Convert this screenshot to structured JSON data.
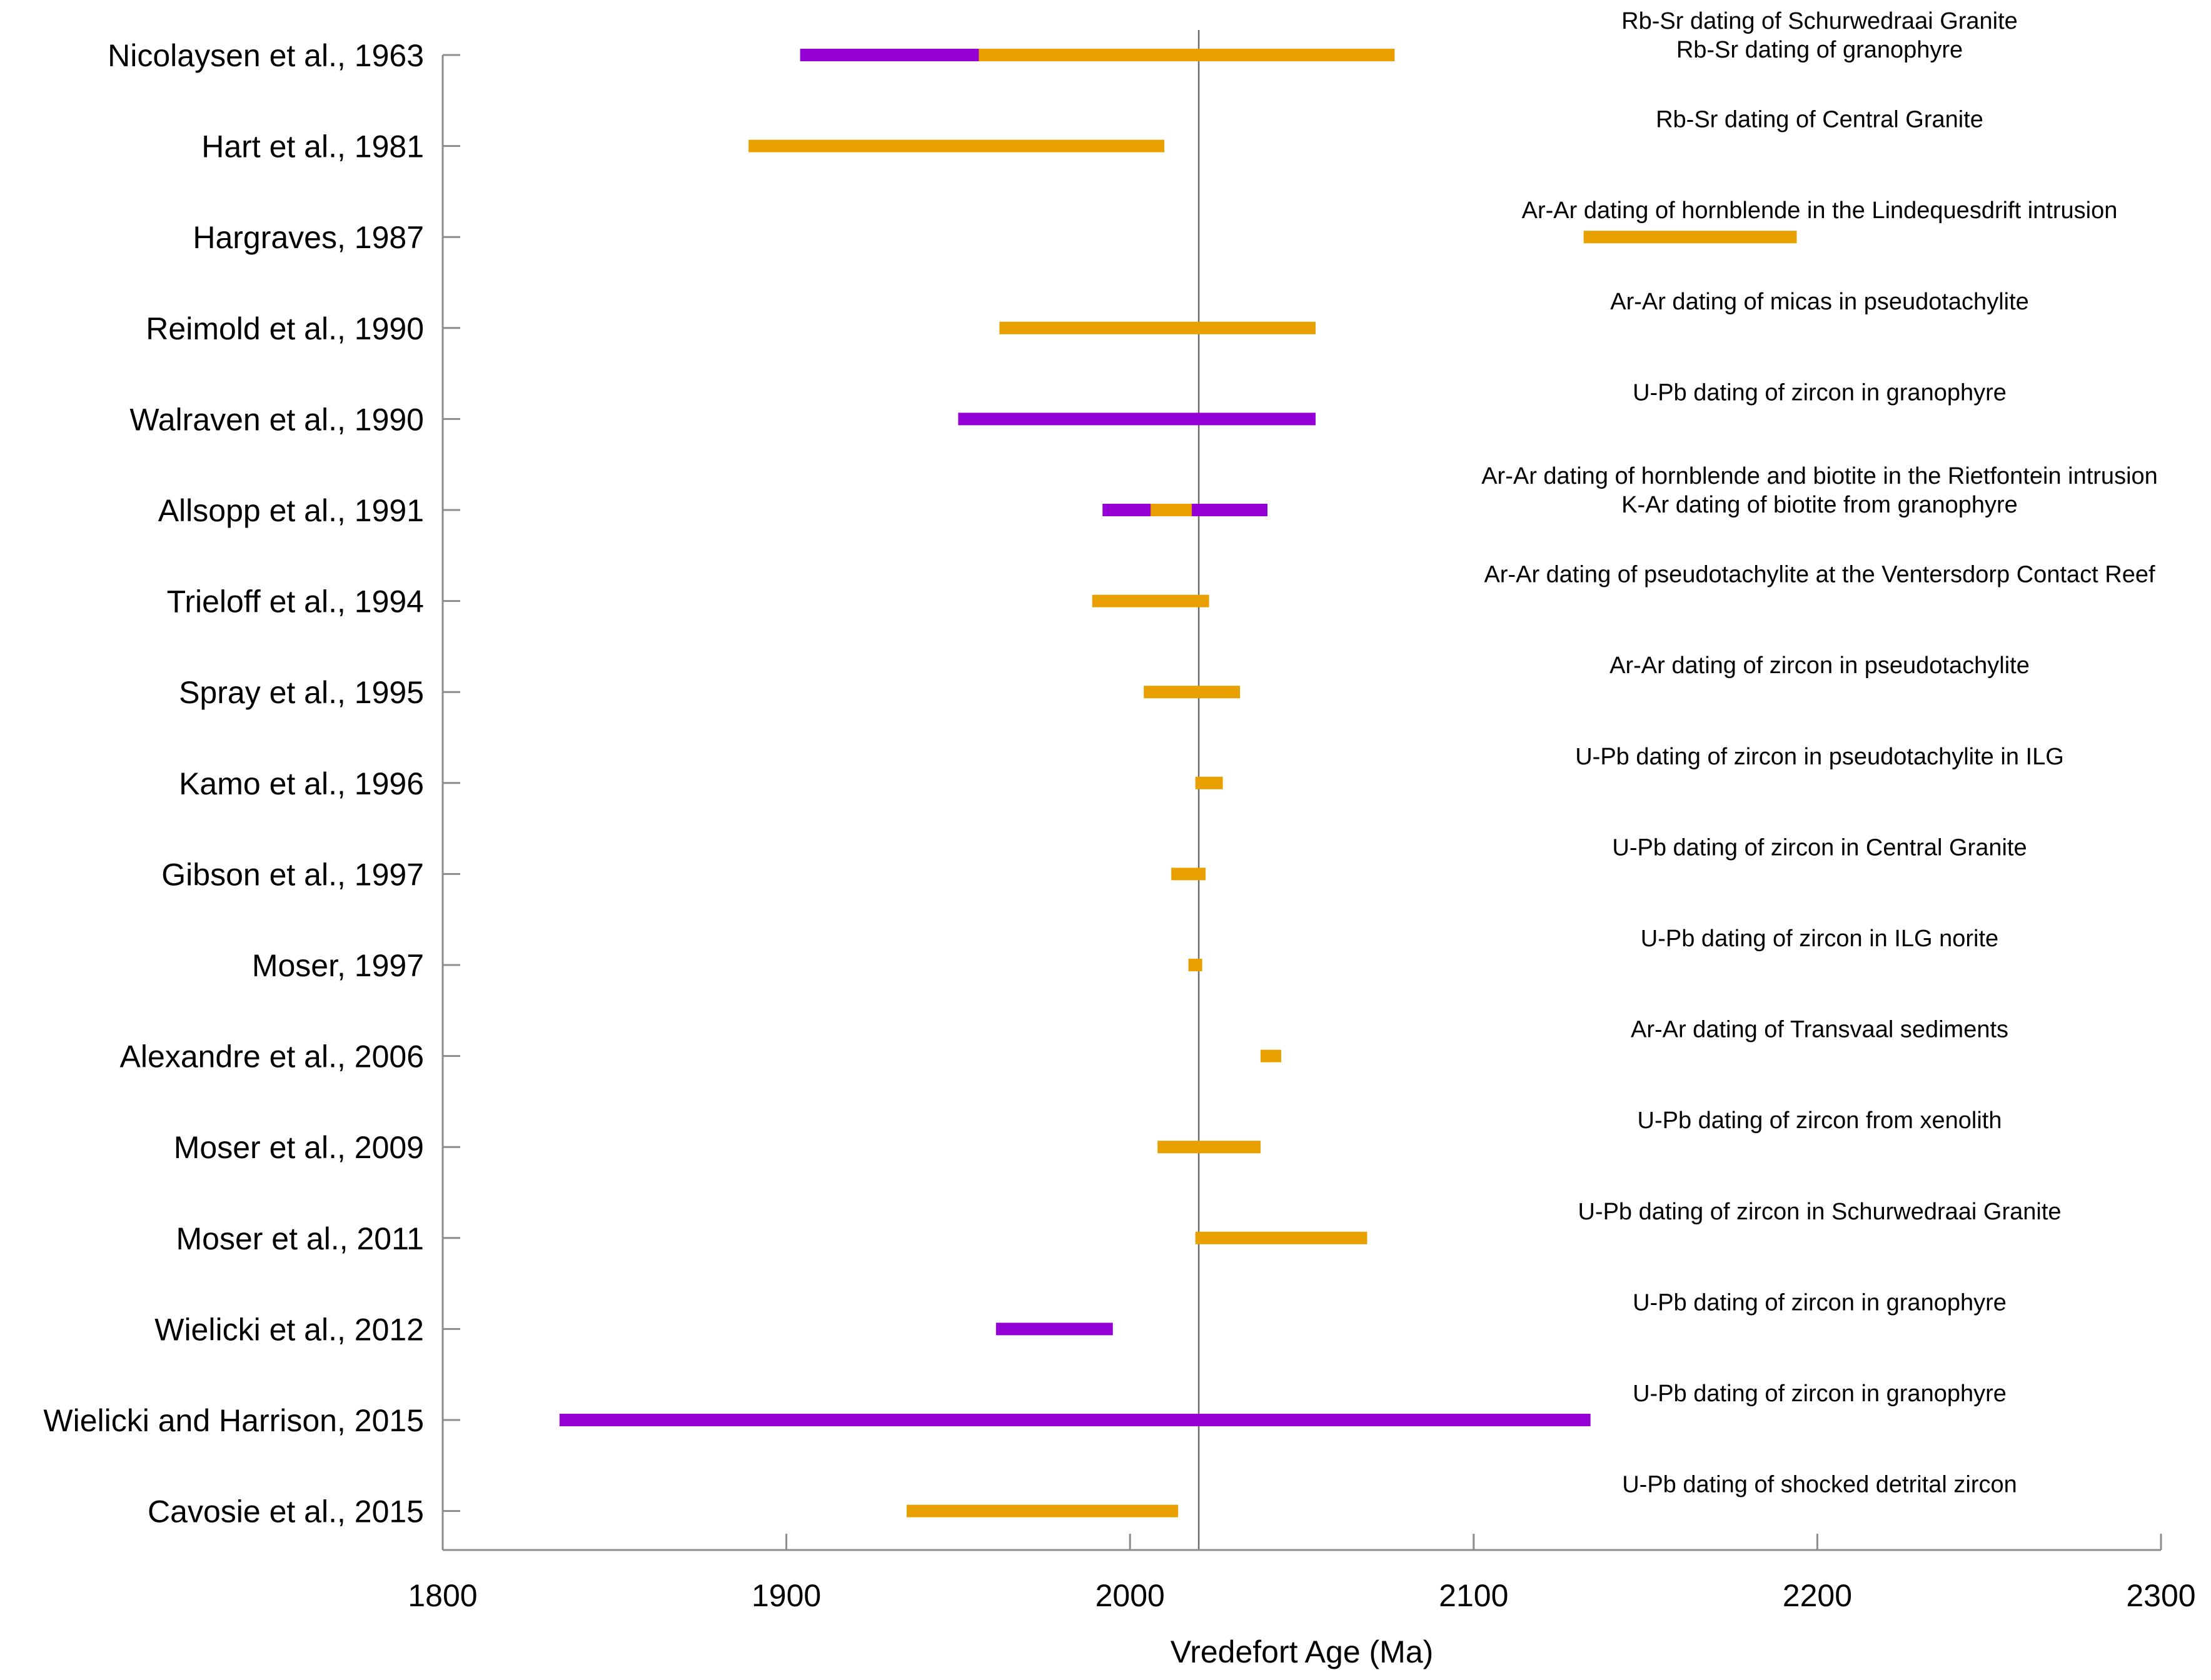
{
  "chart_data": {
    "type": "range-bar",
    "title": "",
    "xlabel": "Vredefort Age (Ma)",
    "ylabel": "",
    "xlim": [
      1800,
      2300
    ],
    "xticks": [
      1800,
      1900,
      2000,
      2100,
      2200,
      2300
    ],
    "reference_line_x": 2020,
    "grid": false,
    "legend": null,
    "colors": {
      "purple": "#9400d3",
      "orange": "#e8a000"
    },
    "studies": [
      {
        "label": "Nicolaysen et al., 1963",
        "notes": [
          "Rb-Sr dating of Schurwedraai Granite",
          "Rb-Sr dating of granophyre"
        ],
        "ranges": [
          {
            "start": 1955,
            "end": 2077,
            "color": "orange"
          },
          {
            "start": 1904,
            "end": 1956,
            "color": "purple"
          }
        ]
      },
      {
        "label": "Hart et al., 1981",
        "notes": [
          "Rb-Sr dating of Central Granite"
        ],
        "ranges": [
          {
            "start": 1889,
            "end": 2010,
            "color": "orange"
          }
        ]
      },
      {
        "label": "Hargraves, 1987",
        "notes": [
          "Ar-Ar dating of hornblende in the Lindequesdrift intrusion"
        ],
        "ranges": [
          {
            "start": 2132,
            "end": 2194,
            "color": "orange"
          }
        ]
      },
      {
        "label": "Reimold et al., 1990",
        "notes": [
          "Ar-Ar dating of micas in pseudotachylite"
        ],
        "ranges": [
          {
            "start": 1962,
            "end": 2054,
            "color": "orange"
          }
        ]
      },
      {
        "label": "Walraven et al., 1990",
        "notes": [
          "U-Pb dating of zircon in granophyre"
        ],
        "ranges": [
          {
            "start": 1950,
            "end": 2054,
            "color": "purple"
          }
        ]
      },
      {
        "label": "Allsopp et al., 1991",
        "notes": [
          "Ar-Ar dating of hornblende and biotite in the Rietfontein intrusion",
          "K-Ar dating of biotite from granophyre"
        ],
        "ranges": [
          {
            "start": 1992,
            "end": 2040,
            "color": "purple"
          },
          {
            "start": 2006,
            "end": 2018,
            "color": "orange"
          }
        ]
      },
      {
        "label": "Trieloff et al., 1994",
        "notes": [
          "Ar-Ar dating of pseudotachylite at the Ventersdorp Contact Reef"
        ],
        "ranges": [
          {
            "start": 1989,
            "end": 2023,
            "color": "orange"
          }
        ]
      },
      {
        "label": "Spray et al., 1995",
        "notes": [
          "Ar-Ar dating of zircon in pseudotachylite"
        ],
        "ranges": [
          {
            "start": 2004,
            "end": 2032,
            "color": "orange"
          }
        ]
      },
      {
        "label": "Kamo et al., 1996",
        "notes": [
          "U-Pb dating of zircon in pseudotachylite in ILG"
        ],
        "ranges": [
          {
            "start": 2019,
            "end": 2027,
            "color": "orange"
          }
        ]
      },
      {
        "label": "Gibson et al., 1997",
        "notes": [
          "U-Pb dating of zircon in Central Granite"
        ],
        "ranges": [
          {
            "start": 2012,
            "end": 2022,
            "color": "orange"
          }
        ]
      },
      {
        "label": "Moser, 1997",
        "notes": [
          "U-Pb dating of zircon in ILG norite"
        ],
        "ranges": [
          {
            "start": 2017,
            "end": 2021,
            "color": "orange"
          }
        ]
      },
      {
        "label": "Alexandre et al., 2006",
        "notes": [
          "Ar-Ar dating of Transvaal sediments"
        ],
        "ranges": [
          {
            "start": 2038,
            "end": 2044,
            "color": "orange"
          }
        ]
      },
      {
        "label": "Moser et al., 2009",
        "notes": [
          "U-Pb dating of zircon from xenolith"
        ],
        "ranges": [
          {
            "start": 2008,
            "end": 2038,
            "color": "orange"
          }
        ]
      },
      {
        "label": "Moser et al., 2011",
        "notes": [
          "U-Pb dating of zircon in Schurwedraai Granite"
        ],
        "ranges": [
          {
            "start": 2019,
            "end": 2069,
            "color": "orange"
          }
        ]
      },
      {
        "label": "Wielicki et al., 2012",
        "notes": [
          "U-Pb dating of zircon in granophyre"
        ],
        "ranges": [
          {
            "start": 1961,
            "end": 1995,
            "color": "purple"
          }
        ]
      },
      {
        "label": "Wielicki and Harrison, 2015",
        "notes": [
          "U-Pb dating of zircon in granophyre"
        ],
        "ranges": [
          {
            "start": 1834,
            "end": 2134,
            "color": "purple"
          }
        ]
      },
      {
        "label": "Cavosie et al., 2015",
        "notes": [
          "U-Pb dating of shocked detrital zircon"
        ],
        "ranges": [
          {
            "start": 1935,
            "end": 2014,
            "color": "orange"
          }
        ]
      }
    ]
  }
}
